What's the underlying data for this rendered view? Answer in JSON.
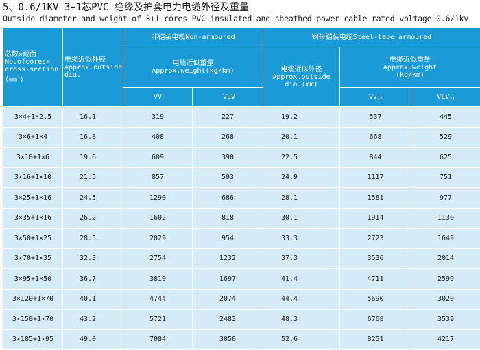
{
  "title_zh": "5、0.6/1KV  3+1芯PVC 绝缘及护套电力电缆外径及重量",
  "title_en": "Outside diameter and weight of 3+1 cores PVC insulated and sheathed power cable rated voltage 0.6/1kv",
  "header": {
    "cores_zh": "芯数×截面",
    "cores_en1": "No.ofcores×",
    "cores_en2": "cross-section",
    "cores_unit": "(mm",
    "cores_sup": "2",
    "cores_unit_end": ")",
    "dia_zh": "电缆近似外径",
    "dia_en1": "Approx.outside",
    "dia_en2": "dia.",
    "non_armoured": "非铠装电缆Non-armoured",
    "steel_tape": "钢带铠装电缆Steel-tape armoured",
    "weight_zh": "电缆近似重量",
    "weight_en": "Approx.weight(kg/km)",
    "dia2_zh": "电缆近似外径",
    "dia2_en1": "Approx.outside",
    "dia2_en2": "dia.(mm)",
    "weight2_zh": "电缆近似重量",
    "weight2_en1": "Approx.weight",
    "weight2_en2": "(kg/km)",
    "col_vv": "VV",
    "col_vlv": "VLV",
    "col_vv22": "Vv",
    "col_vv22_sub": "22",
    "col_vlv22": "VLV",
    "col_vlv22_sub": "22"
  },
  "rows": [
    [
      "3×4+1×2.5",
      "16.1",
      "319",
      "227",
      "19.2",
      "537",
      "445"
    ],
    [
      "3×6+1×4",
      "16.8",
      "408",
      "268",
      "20.1",
      "668",
      "529"
    ],
    [
      "3×10+1×6",
      "19.6",
      "609",
      "390",
      "22.5",
      "844",
      "625"
    ],
    [
      "3×16+1×10",
      "21.5",
      "857",
      "503",
      "24.9",
      "1117",
      "751"
    ],
    [
      "3×25+1×16",
      "24.5",
      "1290",
      "686",
      "28.1",
      "1581",
      "977"
    ],
    [
      "3×35+1×16",
      "26.2",
      "1602",
      "818",
      "30.1",
      "1914",
      "1130"
    ],
    [
      "3×50+1×25",
      "28.5",
      "2029",
      "954",
      "33.3",
      "2723",
      "1649"
    ],
    [
      "3×70+1×35",
      "32.3",
      "2754",
      "1232",
      "37.3",
      "3536",
      "2014"
    ],
    [
      "3×95+1×50",
      "36.7",
      "3810",
      "1697",
      "41.4",
      "4711",
      "2599"
    ],
    [
      "3×120+1×70",
      "40.1",
      "4744",
      "2074",
      "44.4",
      "5690",
      "3020"
    ],
    [
      "3×150+1×70",
      "43.2",
      "5721",
      "2483",
      "48.3",
      "6768",
      "3539"
    ],
    [
      "3×185+1×95",
      "49.0",
      "7084",
      "3050",
      "52.6",
      "8251",
      "4217"
    ]
  ]
}
